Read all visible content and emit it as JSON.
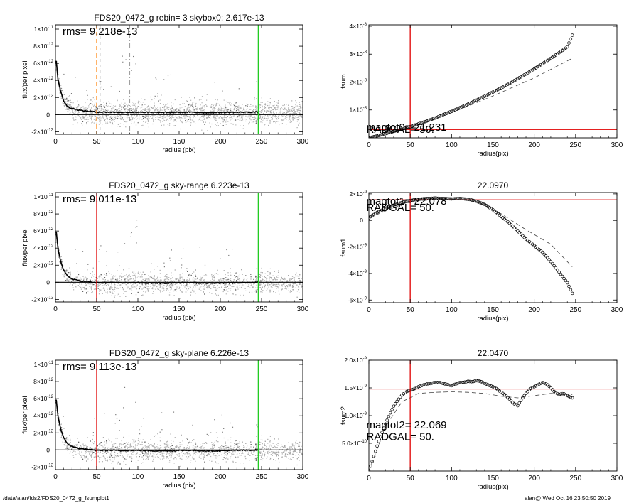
{
  "footer": {
    "path": "/data/alan/fds2/FDS20_0472_g_fsumplot1",
    "user_time": "alan@  Wed Oct 16 23:50:50 2019"
  },
  "chart_data": [
    {
      "id": "left1",
      "type": "scatter",
      "title": "FDS20_0472_g rebin= 3    skybox0:  2.617e-13",
      "xlabel": "radius (pix)",
      "ylabel": "flux/per pixel",
      "xlim": [
        0,
        300
      ],
      "ylim": [
        -2.3e-12,
        1.05e-11
      ],
      "xticks": [
        "0",
        "50",
        "100",
        "150",
        "200",
        "250",
        "300"
      ],
      "yticks": [
        {
          "v": -2e-12,
          "m": "-2",
          "e": "-12"
        },
        {
          "v": 0,
          "m": "0",
          "e": ""
        },
        {
          "v": 2e-12,
          "m": "2",
          "e": "-12"
        },
        {
          "v": 4e-12,
          "m": "4",
          "e": "-12"
        },
        {
          "v": 6e-12,
          "m": "6",
          "e": "-12"
        },
        {
          "v": 8e-12,
          "m": "8",
          "e": "-12"
        },
        {
          "v": 1e-11,
          "m": "1",
          "e": "-11"
        }
      ],
      "annotation": "rms= 9.218e-13",
      "vlines": [
        {
          "x": 50,
          "color": "#ff8c1a",
          "dash": "6,4"
        },
        {
          "x": 54,
          "color": "#a0a0a0",
          "dash": "4,4"
        },
        {
          "x": 90,
          "color": "#a0a0a0",
          "dash": "6,3,1,3"
        },
        {
          "x": 246,
          "color": "#22cc22",
          "dash": ""
        }
      ],
      "hlines": [
        {
          "y": 0,
          "color": "#000000"
        }
      ],
      "profile": {
        "x": [
          1,
          3,
          6,
          10,
          14,
          18,
          22,
          26,
          30,
          35,
          40,
          45,
          50,
          60,
          70,
          80,
          90,
          100,
          120,
          140,
          160,
          180,
          200,
          220,
          246
        ],
        "y": [
          6.3e-12,
          4.2e-12,
          2.8e-12,
          1.6e-12,
          1e-12,
          8e-13,
          7e-13,
          6e-13,
          5e-13,
          4.5e-13,
          4e-13,
          3.5e-13,
          3e-13,
          3e-13,
          2.8e-13,
          2.5e-13,
          2.8e-13,
          3e-13,
          2.5e-13,
          2.5e-13,
          2.8e-13,
          2.5e-13,
          2.5e-13,
          2.8e-13,
          3e-13
        ]
      },
      "noise": {
        "center": 2.6e-13,
        "sigma": 9.2e-13
      }
    },
    {
      "id": "left2",
      "type": "scatter",
      "title": "FDS20_0472_g sky-range  6.223e-13",
      "xlabel": "radius (pix)",
      "ylabel": "flux/per pixel",
      "xlim": [
        0,
        300
      ],
      "ylim": [
        -2.3e-12,
        1.05e-11
      ],
      "xticks": [
        "0",
        "50",
        "100",
        "150",
        "200",
        "250",
        "300"
      ],
      "yticks": [
        {
          "v": -2e-12,
          "m": "-2",
          "e": "-12"
        },
        {
          "v": 0,
          "m": "0",
          "e": ""
        },
        {
          "v": 2e-12,
          "m": "2",
          "e": "-12"
        },
        {
          "v": 4e-12,
          "m": "4",
          "e": "-12"
        },
        {
          "v": 6e-12,
          "m": "6",
          "e": "-12"
        },
        {
          "v": 8e-12,
          "m": "8",
          "e": "-12"
        },
        {
          "v": 1e-11,
          "m": "1",
          "e": "-11"
        }
      ],
      "annotation": "rms= 9.011e-13",
      "vlines": [
        {
          "x": 50,
          "color": "#e00000",
          "dash": ""
        },
        {
          "x": 246,
          "color": "#22cc22",
          "dash": ""
        }
      ],
      "hlines": [
        {
          "y": 0,
          "color": "#000000"
        }
      ],
      "profile": {
        "x": [
          1,
          3,
          6,
          10,
          14,
          18,
          22,
          26,
          30,
          35,
          40,
          45,
          50,
          60,
          70,
          80,
          90,
          100,
          120,
          140,
          160,
          180,
          200,
          220,
          246
        ],
        "y": [
          5.9e-12,
          4e-12,
          2.6e-12,
          1.4e-12,
          8e-13,
          5e-13,
          3.5e-13,
          2.5e-13,
          1.5e-13,
          1e-13,
          5e-14,
          0,
          -5e-14,
          -5e-14,
          -5e-14,
          -1e-13,
          -5e-14,
          -5e-14,
          -1e-13,
          -1e-13,
          -5e-14,
          -1e-13,
          -1e-13,
          -5e-14,
          0
        ]
      },
      "noise": {
        "center": 0,
        "sigma": 9e-13
      }
    },
    {
      "id": "left3",
      "type": "scatter",
      "title": "FDS20_0472_g sky-plane  6.226e-13",
      "xlabel": "radius (pix)",
      "ylabel": "flux/per pixel",
      "xlim": [
        0,
        300
      ],
      "ylim": [
        -2.3e-12,
        1.05e-11
      ],
      "xticks": [
        "0",
        "50",
        "100",
        "150",
        "200",
        "250",
        "300"
      ],
      "yticks": [
        {
          "v": -2e-12,
          "m": "-2",
          "e": "-12"
        },
        {
          "v": 0,
          "m": "0",
          "e": ""
        },
        {
          "v": 2e-12,
          "m": "2",
          "e": "-12"
        },
        {
          "v": 4e-12,
          "m": "4",
          "e": "-12"
        },
        {
          "v": 6e-12,
          "m": "6",
          "e": "-12"
        },
        {
          "v": 8e-12,
          "m": "8",
          "e": "-12"
        },
        {
          "v": 1e-11,
          "m": "1",
          "e": "-11"
        }
      ],
      "annotation": "rms= 9.113e-13",
      "vlines": [
        {
          "x": 50,
          "color": "#e00000",
          "dash": ""
        },
        {
          "x": 246,
          "color": "#22cc22",
          "dash": ""
        }
      ],
      "hlines": [
        {
          "y": 0,
          "color": "#000000"
        }
      ],
      "profile": {
        "x": [
          1,
          3,
          6,
          10,
          14,
          18,
          22,
          26,
          30,
          35,
          40,
          45,
          50,
          60,
          70,
          80,
          90,
          100,
          120,
          140,
          160,
          180,
          200,
          220,
          246
        ],
        "y": [
          5.9e-12,
          4e-12,
          2.6e-12,
          1.4e-12,
          8e-13,
          5e-13,
          3.5e-13,
          2.5e-13,
          1.5e-13,
          1e-13,
          5e-14,
          0,
          -5e-14,
          -5e-14,
          -5e-14,
          -1e-13,
          -5e-14,
          -5e-14,
          -1e-13,
          -1e-13,
          -5e-14,
          -1e-13,
          -1e-13,
          -5e-14,
          0
        ]
      },
      "noise": {
        "center": 0,
        "sigma": 9.1e-13
      }
    },
    {
      "id": "right1",
      "type": "line",
      "title": "",
      "xlabel": "radius(pix)",
      "ylabel": "fsum",
      "xlim": [
        0,
        300
      ],
      "ylim": [
        0,
        4.05e-08
      ],
      "xticks": [
        "0",
        "50",
        "100",
        "150",
        "200",
        "250",
        "300"
      ],
      "yticks": [
        {
          "v": 1e-08,
          "m": "1",
          "e": "-8"
        },
        {
          "v": 2e-08,
          "m": "2",
          "e": "-8"
        },
        {
          "v": 3e-08,
          "m": "3",
          "e": "-8"
        },
        {
          "v": 4e-08,
          "m": "4",
          "e": "-8"
        }
      ],
      "vlines": [
        {
          "x": 50,
          "color": "#e00000",
          "dash": ""
        }
      ],
      "hlines": [
        {
          "y": 3e-09,
          "color": "#e00000"
        }
      ],
      "circles": {
        "x": [
          0,
          10,
          20,
          30,
          40,
          50,
          60,
          70,
          80,
          90,
          100,
          110,
          120,
          130,
          140,
          150,
          160,
          170,
          180,
          190,
          200,
          210,
          220,
          230,
          240,
          246
        ],
        "y": [
          0,
          7e-10,
          1.5e-09,
          2.3e-09,
          3.1e-09,
          4e-09,
          5e-09,
          6e-09,
          7.1e-09,
          8.3e-09,
          9.5e-09,
          1.08e-08,
          1.21e-08,
          1.35e-08,
          1.49e-08,
          1.64e-08,
          1.79e-08,
          1.95e-08,
          2.12e-08,
          2.29e-08,
          2.47e-08,
          2.66e-08,
          2.85e-08,
          3.05e-08,
          3.26e-08,
          3.68e-08
        ]
      },
      "dashed": {
        "x": [
          0,
          50,
          100,
          150,
          200,
          246
        ],
        "y": [
          0,
          3.5e-09,
          9e-09,
          1.5e-08,
          2.15e-08,
          2.85e-08
        ]
      },
      "labels": [
        {
          "text": "magtot0= 21.231",
          "x": -3,
          "y": 2.6e-09
        },
        {
          "text": "RADGAL=     50.",
          "x": -3,
          "y": 1.8e-09
        }
      ]
    },
    {
      "id": "right2",
      "type": "line",
      "title": "22.0970",
      "xlabel": "radius(pix)",
      "ylabel": "fsum1",
      "xlim": [
        0,
        300
      ],
      "ylim": [
        -6.2e-09,
        2.1e-09
      ],
      "xticks": [
        "0",
        "50",
        "100",
        "150",
        "200",
        "250",
        "300"
      ],
      "yticks": [
        {
          "v": -6e-09,
          "m": "-6",
          "e": "-9"
        },
        {
          "v": -4e-09,
          "m": "-4",
          "e": "-9"
        },
        {
          "v": -2e-09,
          "m": "-2",
          "e": "-9"
        },
        {
          "v": 0,
          "m": "0",
          "e": ""
        },
        {
          "v": 2e-09,
          "m": "2",
          "e": "-9"
        }
      ],
      "vlines": [
        {
          "x": 50,
          "color": "#e00000",
          "dash": ""
        }
      ],
      "hlines": [
        {
          "y": 1.55e-09,
          "color": "#e00000"
        }
      ],
      "circles": {
        "x": [
          0,
          10,
          20,
          30,
          40,
          50,
          60,
          70,
          80,
          90,
          100,
          110,
          120,
          130,
          140,
          150,
          160,
          170,
          180,
          190,
          200,
          210,
          220,
          230,
          240,
          246
        ],
        "y": [
          2e-10,
          6e-10,
          9e-10,
          1.15e-09,
          1.35e-09,
          1.5e-09,
          1.6e-09,
          1.65e-09,
          1.68e-09,
          1.65e-09,
          1.62e-09,
          1.65e-09,
          1.6e-09,
          1.45e-09,
          1.2e-09,
          8e-10,
          3e-10,
          -2e-10,
          -8e-10,
          -1.4e-09,
          -1.9e-09,
          -2.4e-09,
          -3.1e-09,
          -3.9e-09,
          -4.7e-09,
          -5.5e-09
        ]
      },
      "dashed": {
        "x": [
          0,
          50,
          100,
          130,
          160,
          190,
          220,
          246
        ],
        "y": [
          2e-10,
          1.45e-09,
          1.6e-09,
          1.45e-09,
          5e-10,
          -7e-10,
          -1.8e-09,
          -3.5e-09
        ]
      },
      "labels": [
        {
          "text": "magtot1=  22.078",
          "x": -3,
          "y": 1.2e-09
        },
        {
          "text": "RADGAL=     50.",
          "x": -3,
          "y": 7e-10
        }
      ]
    },
    {
      "id": "right3",
      "type": "line",
      "title": "22.0470",
      "xlabel": "radius(pix)",
      "ylabel": "fsum2",
      "xlim": [
        0,
        300
      ],
      "ylim": [
        0,
        2e-09
      ],
      "xticks": [
        "0",
        "50",
        "100",
        "150",
        "200",
        "250",
        "300"
      ],
      "yticks": [
        {
          "v": 5e-10,
          "m": "5.0",
          "e": "-10"
        },
        {
          "v": 1e-09,
          "m": "1.0",
          "e": "-9"
        },
        {
          "v": 1.5e-09,
          "m": "1.5",
          "e": "-9"
        },
        {
          "v": 2e-09,
          "m": "2.0",
          "e": "-9"
        }
      ],
      "vlines": [
        {
          "x": 50,
          "color": "#e00000",
          "dash": ""
        }
      ],
      "hlines": [
        {
          "y": 1.48e-09,
          "color": "#e00000"
        }
      ],
      "circles": {
        "x": [
          0,
          5,
          10,
          15,
          20,
          25,
          30,
          35,
          40,
          45,
          50,
          55,
          60,
          65,
          70,
          75,
          80,
          85,
          90,
          95,
          100,
          105,
          110,
          115,
          120,
          125,
          130,
          135,
          140,
          145,
          150,
          155,
          160,
          165,
          170,
          175,
          180,
          185,
          190,
          195,
          200,
          205,
          210,
          215,
          220,
          225,
          230,
          235,
          240,
          246
        ],
        "y": [
          0,
          2.2e-10,
          4.5e-10,
          6.6e-10,
          8.5e-10,
          1.02e-09,
          1.17e-09,
          1.28e-09,
          1.37e-09,
          1.43e-09,
          1.46e-09,
          1.48e-09,
          1.52e-09,
          1.55e-09,
          1.57e-09,
          1.58e-09,
          1.6e-09,
          1.6e-09,
          1.58e-09,
          1.56e-09,
          1.54e-09,
          1.57e-09,
          1.6e-09,
          1.6e-09,
          1.62e-09,
          1.61e-09,
          1.63e-09,
          1.62e-09,
          1.58e-09,
          1.55e-09,
          1.52e-09,
          1.48e-09,
          1.42e-09,
          1.37e-09,
          1.3e-09,
          1.22e-09,
          1.18e-09,
          1.3e-09,
          1.4e-09,
          1.48e-09,
          1.52e-09,
          1.56e-09,
          1.6e-09,
          1.57e-09,
          1.5e-09,
          1.42e-09,
          1.38e-09,
          1.4e-09,
          1.36e-09,
          1.32e-09
        ]
      },
      "dashed": {
        "x": [
          0,
          20,
          40,
          60,
          80,
          100,
          120,
          140,
          160,
          180,
          200,
          220,
          246
        ],
        "y": [
          0,
          8e-10,
          1.25e-09,
          1.4e-09,
          1.42e-09,
          1.43e-09,
          1.42e-09,
          1.4e-09,
          1.35e-09,
          1.32e-09,
          1.36e-09,
          1.4e-09,
          1.38e-09
        ]
      },
      "labels": [
        {
          "text": "magtot2=  22.069",
          "x": -3,
          "y": 7.7e-10
        },
        {
          "text": "RADGAL=     50.",
          "x": -3,
          "y": 5.6e-10
        }
      ]
    }
  ]
}
